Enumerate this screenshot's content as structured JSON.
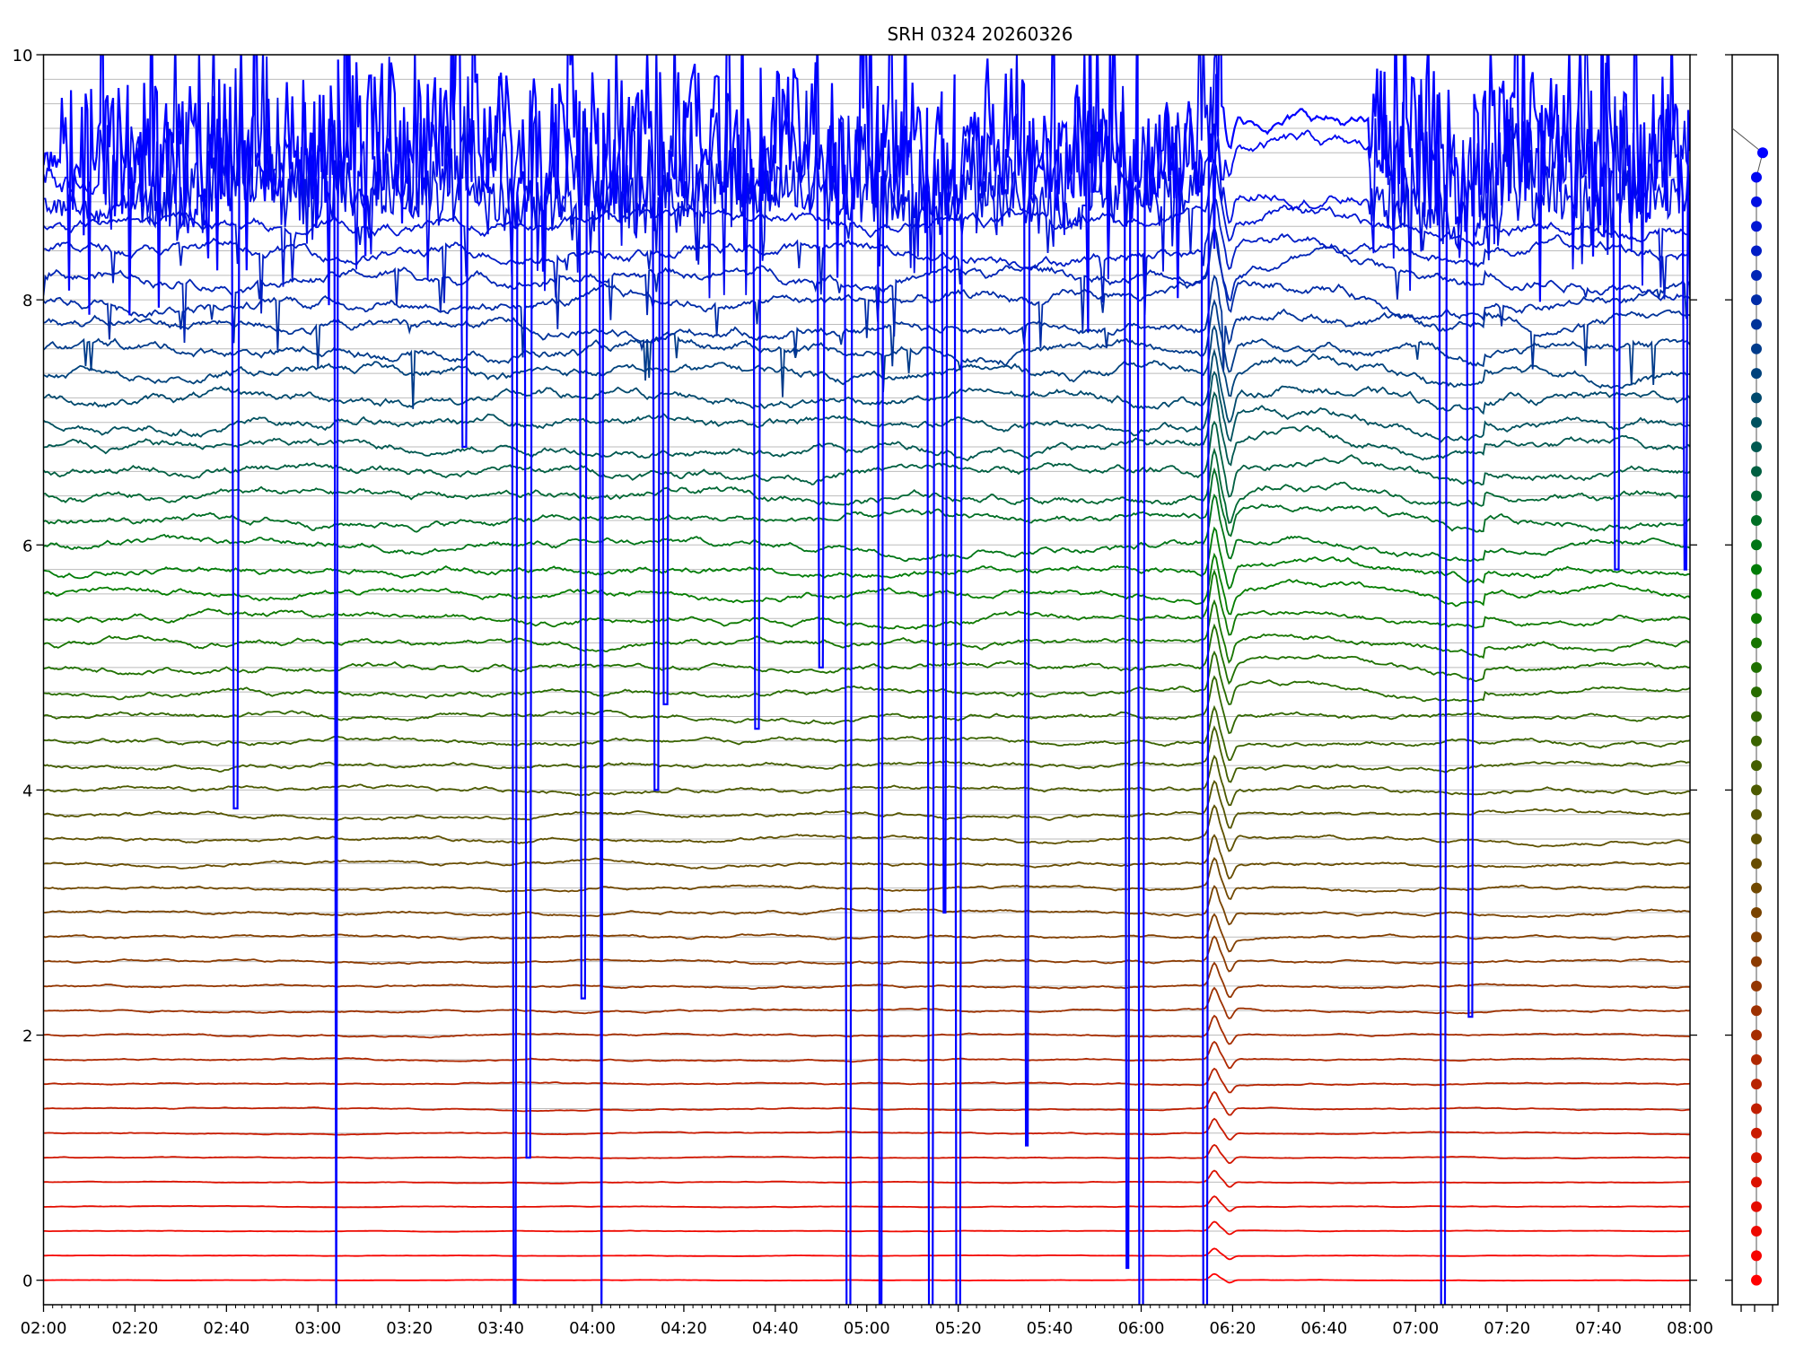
{
  "chart_data": {
    "type": "line",
    "title": "SRH 0324 20260326",
    "xlabel": "",
    "ylabel": "",
    "x_range_minutes": [
      120,
      480
    ],
    "ylim": [
      -0.2,
      10
    ],
    "x_tick_labels": [
      "02:00",
      "02:20",
      "02:40",
      "03:00",
      "03:20",
      "03:40",
      "04:00",
      "04:20",
      "04:40",
      "05:00",
      "05:20",
      "05:40",
      "06:00",
      "06:20",
      "06:40",
      "07:00",
      "07:20",
      "07:40",
      "08:00"
    ],
    "y_tick_labels": [
      "0",
      "2",
      "4",
      "6",
      "8",
      "10"
    ],
    "y_ticks": [
      0,
      2,
      4,
      6,
      8,
      10
    ],
    "grid": "horizontal at each trace offset",
    "series_count": 47,
    "offset_step": 0.2,
    "colors": {
      "bottom": "#ff0000",
      "middle": "#008000",
      "top": "#0000ff",
      "grid": "#bbbbbb"
    },
    "events": {
      "common_pulse_time": "06:15",
      "quiet_window": [
        "06:18",
        "06:55"
      ],
      "full_dropouts": [
        "03:04",
        "03:43",
        "04:02",
        "04:56",
        "05:03",
        "05:14",
        "05:20",
        "06:00",
        "06:14",
        "07:06"
      ],
      "partial_dropouts": [
        {
          "time": "02:42",
          "to": 3.85
        },
        {
          "time": "03:32",
          "to": 6.8
        },
        {
          "time": "03:46",
          "to": 1.0
        },
        {
          "time": "03:58",
          "to": 2.3
        },
        {
          "time": "04:14",
          "to": 4.0
        },
        {
          "time": "04:16",
          "to": 4.7
        },
        {
          "time": "04:36",
          "to": 4.5
        },
        {
          "time": "04:50",
          "to": 5.0
        },
        {
          "time": "05:17",
          "to": 3.0
        },
        {
          "time": "05:35",
          "to": 1.1
        },
        {
          "time": "05:57",
          "to": 0.1
        },
        {
          "time": "07:12",
          "to": 2.15
        },
        {
          "time": "07:44",
          "to": 5.8
        },
        {
          "time": "07:59",
          "to": 5.8
        }
      ]
    },
    "side_panel": {
      "dot_values_from": 0,
      "dot_values_to": 9.2,
      "top_link_from": 9.4
    }
  }
}
